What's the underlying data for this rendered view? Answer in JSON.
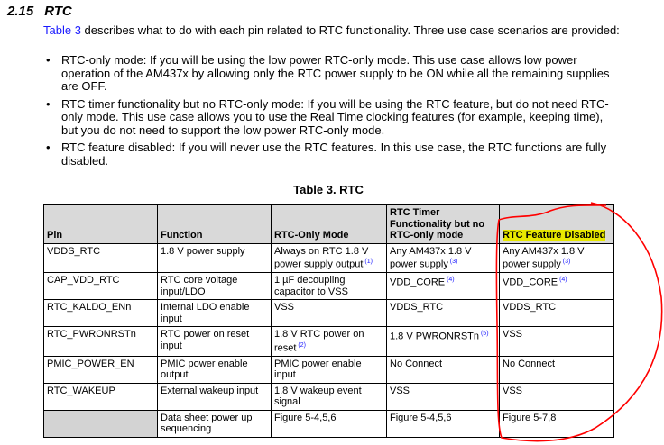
{
  "section": {
    "number": "2.15",
    "title": "RTC"
  },
  "intro": {
    "link": "Table 3",
    "text": " describes what to do with each pin related to RTC functionality. Three use case scenarios are provided:"
  },
  "bullets": [
    "RTC-only mode: If you will be using the low power RTC-only mode. This use case allows low power operation of the AM437x by allowing only the RTC power supply to be ON while all the remaining supplies are OFF.",
    "RTC timer functionality but no RTC-only mode: If you will be using the RTC feature, but do not need RTC-only mode. This use case allows you to use the Real Time clocking features (for example, keeping time), but you do not need to support the low power RTC-only mode.",
    "RTC feature disabled: If you will never use the RTC features. In this use case, the RTC functions are fully disabled."
  ],
  "table": {
    "caption": "Table 3. RTC",
    "headers": [
      "Pin",
      "Function",
      "RTC-Only Mode",
      "RTC Timer Functionality but no RTC-only mode",
      "RTC Feature Disabled"
    ],
    "rows": [
      [
        {
          "t": "VDDS_RTC"
        },
        {
          "t": "1.8 V power supply"
        },
        {
          "t": "Always on RTC 1.8 V power supply output",
          "s": "(1)"
        },
        {
          "t": "Any AM437x 1.8 V power supply",
          "s": "(3)"
        },
        {
          "t": "Any AM437x 1.8 V power supply",
          "s": "(3)"
        }
      ],
      [
        {
          "t": "CAP_VDD_RTC"
        },
        {
          "t": "RTC core voltage input/LDO"
        },
        {
          "t": "1 µF decoupling capacitor to VSS"
        },
        {
          "t": "VDD_CORE",
          "s": "(4)"
        },
        {
          "t": "VDD_CORE",
          "s": "(4)"
        }
      ],
      [
        {
          "t": "RTC_KALDO_ENn"
        },
        {
          "t": "Internal LDO enable input"
        },
        {
          "t": "VSS"
        },
        {
          "t": "VDDS_RTC"
        },
        {
          "t": "VDDS_RTC"
        }
      ],
      [
        {
          "t": "RTC_PWRONRSTn"
        },
        {
          "t": "RTC power on reset input"
        },
        {
          "t": "1.8 V RTC power on reset",
          "s": "(2)"
        },
        {
          "t": "1.8 V PWRONRSTn",
          "s": "(5)"
        },
        {
          "t": "VSS"
        }
      ],
      [
        {
          "t": "PMIC_POWER_EN"
        },
        {
          "t": "PMIC power enable output"
        },
        {
          "t": "PMIC power enable input"
        },
        {
          "t": "No Connect"
        },
        {
          "t": "No Connect"
        }
      ],
      [
        {
          "t": "RTC_WAKEUP"
        },
        {
          "t": "External wakeup input"
        },
        {
          "t": "1.8 V wakeup event signal"
        },
        {
          "t": "VSS"
        },
        {
          "t": "VSS"
        }
      ],
      [
        {
          "t": ""
        },
        {
          "t": "Data sheet power up sequencing"
        },
        {
          "t": "Figure 5-4,5,6"
        },
        {
          "t": "Figure 5-4,5,6"
        },
        {
          "t": "Figure 5-7,8"
        }
      ]
    ]
  },
  "annotation": {
    "highlight_color": "#e8e800",
    "circle_color": "#ff0000"
  }
}
